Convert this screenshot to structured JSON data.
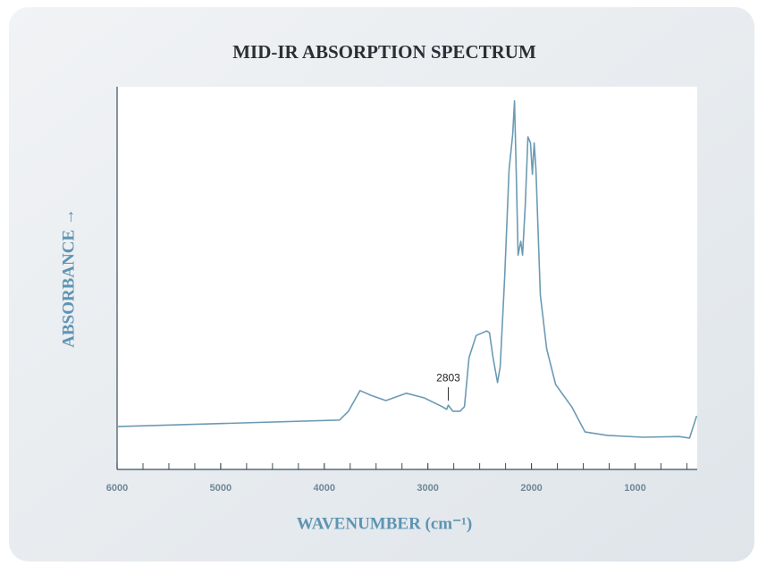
{
  "chart_data": {
    "type": "line",
    "title": "MID-IR ABSORPTION SPECTRUM",
    "xlabel": "WAVENUMBER (cm⁻¹)",
    "ylabel": "ABSORBANCE →",
    "x": [
      6000,
      3853,
      3767,
      3655,
      3552,
      3405,
      3207,
      3034,
      2862,
      2819,
      2803,
      2759,
      2690,
      2647,
      2603,
      2534,
      2431,
      2405,
      2371,
      2328,
      2302,
      2259,
      2216,
      2181,
      2164,
      2147,
      2129,
      2103,
      2086,
      2060,
      2034,
      2009,
      1991,
      1974,
      1957,
      1914,
      1853,
      1767,
      1612,
      1483,
      1267,
      922,
      578,
      474,
      405
    ],
    "values": [
      11.2,
      12.9,
      15.2,
      20.6,
      19.4,
      18,
      19.9,
      18.7,
      16.4,
      15.7,
      16.8,
      15.2,
      15.2,
      16.4,
      29.2,
      35,
      36.2,
      35.7,
      29.2,
      22.7,
      26.9,
      50.2,
      78.3,
      87.6,
      96.3,
      78,
      56,
      59.6,
      56,
      68.9,
      86.9,
      85.3,
      77.1,
      85.3,
      78.3,
      45.6,
      31.5,
      22.2,
      16.4,
      9.8,
      8.9,
      8.4,
      8.6,
      8.2,
      14
    ],
    "color": "#6b9bb3",
    "annotations": [
      2803
    ],
    "xlim": [
      6000,
      400
    ],
    "ylim": [
      0,
      100
    ],
    "xticks": [
      6000,
      5000,
      4000,
      3000,
      2000,
      1000
    ],
    "xminorticks": [
      5750,
      5500,
      5250,
      4750,
      4500,
      4250,
      3750,
      3500,
      3250,
      2750,
      2500,
      2250,
      1750,
      1500,
      1250,
      750,
      500
    ],
    "grid": false
  }
}
